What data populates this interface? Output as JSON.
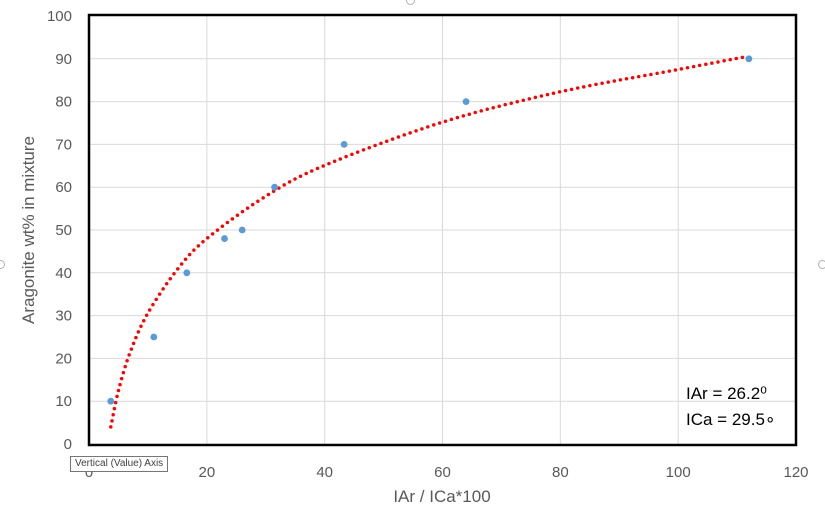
{
  "chart_data": {
    "type": "scatter",
    "title": "",
    "xlabel": "IAr / ICa*100",
    "ylabel": "Aragonite wt% in mixture",
    "xlim": [
      0,
      120
    ],
    "ylim": [
      0,
      100
    ],
    "x_ticks": [
      "0",
      "20",
      "40",
      "60",
      "80",
      "100",
      "120"
    ],
    "y_ticks": [
      "0",
      "10",
      "20",
      "30",
      "40",
      "50",
      "60",
      "70",
      "80",
      "90",
      "100"
    ],
    "grid": true,
    "legend": "none",
    "series": [
      {
        "points": [
          {
            "x": 3.7,
            "y": 10
          },
          {
            "x": 11.0,
            "y": 25
          },
          {
            "x": 16.6,
            "y": 40
          },
          {
            "x": 23.0,
            "y": 48
          },
          {
            "x": 26.0,
            "y": 50
          },
          {
            "x": 31.5,
            "y": 60
          },
          {
            "x": 43.3,
            "y": 70
          },
          {
            "x": 64.0,
            "y": 80
          },
          {
            "x": 112.0,
            "y": 90
          }
        ],
        "color": "#5b9bd5"
      }
    ],
    "trendline": {
      "type": "logarithmic",
      "style": "dotted",
      "color": "#ff0000",
      "x_start": 3.7,
      "x_end": 111.5,
      "points": [
        {
          "x": 3.7,
          "y": 4
        },
        {
          "x": 5,
          "y": 12.5
        },
        {
          "x": 7,
          "y": 21.5
        },
        {
          "x": 10,
          "y": 30.6
        },
        {
          "x": 15,
          "y": 40.8
        },
        {
          "x": 20,
          "y": 48.0
        },
        {
          "x": 30,
          "y": 57.9
        },
        {
          "x": 40,
          "y": 65.1
        },
        {
          "x": 60,
          "y": 75.2
        },
        {
          "x": 80,
          "y": 82.3
        },
        {
          "x": 100,
          "y": 87.5
        },
        {
          "x": 111.5,
          "y": 90.5
        }
      ]
    },
    "annotations": [
      "IAr = 26.2⁰",
      "ICa = 29.5∘"
    ]
  },
  "tooltip": "Vertical (Value) Axis",
  "colors": {
    "marker": "#5b9bd5",
    "trendline": "#ff0000",
    "grid": "#d9d9d9",
    "plot_border": "#000000"
  }
}
